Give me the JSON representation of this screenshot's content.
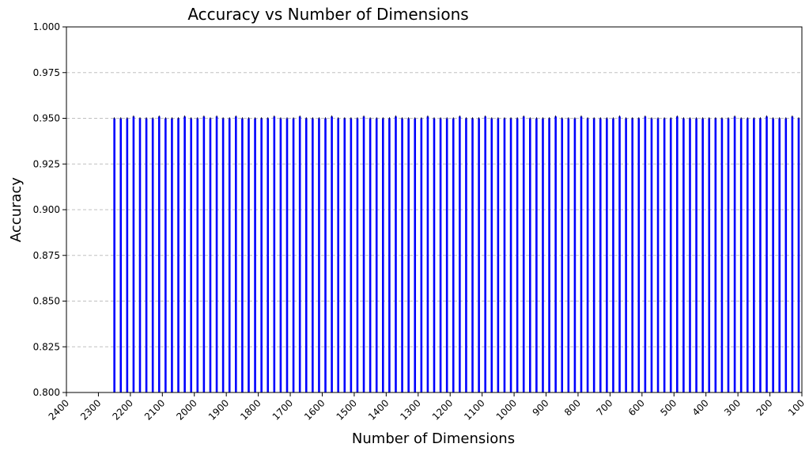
{
  "chart_data": {
    "type": "bar",
    "title": "Accuracy vs Number of Dimensions",
    "xlabel": "Number of Dimensions",
    "ylabel": "Accuracy",
    "x_inverted": true,
    "xlim": [
      2400,
      100
    ],
    "ylim": [
      0.8,
      1.0
    ],
    "yticks": [
      "0.800",
      "0.825",
      "0.850",
      "0.875",
      "0.900",
      "0.925",
      "0.950",
      "0.975",
      "1.000"
    ],
    "xticks": [
      "2400",
      "2300",
      "2200",
      "2100",
      "2000",
      "1900",
      "1800",
      "1700",
      "1600",
      "1500",
      "1400",
      "1300",
      "1200",
      "1100",
      "1000",
      "900",
      "800",
      "700",
      "600",
      "500",
      "400",
      "300",
      "200",
      "100"
    ],
    "grid": {
      "y": true,
      "x": false,
      "style": "dashed"
    },
    "bar_color": "#0000ff",
    "errorbar_color": "#000000",
    "x": [
      2250,
      2230,
      2210,
      2190,
      2170,
      2150,
      2130,
      2110,
      2090,
      2070,
      2050,
      2030,
      2010,
      1990,
      1970,
      1950,
      1930,
      1910,
      1890,
      1870,
      1850,
      1830,
      1810,
      1790,
      1770,
      1750,
      1730,
      1710,
      1690,
      1670,
      1650,
      1630,
      1610,
      1590,
      1570,
      1550,
      1530,
      1510,
      1490,
      1470,
      1450,
      1430,
      1410,
      1390,
      1370,
      1350,
      1330,
      1310,
      1290,
      1270,
      1250,
      1230,
      1210,
      1190,
      1170,
      1150,
      1130,
      1110,
      1090,
      1070,
      1050,
      1030,
      1010,
      990,
      970,
      950,
      930,
      910,
      890,
      870,
      850,
      830,
      810,
      790,
      770,
      750,
      730,
      710,
      690,
      670,
      650,
      630,
      610,
      590,
      570,
      550,
      530,
      510,
      490,
      470,
      450,
      430,
      410,
      390,
      370,
      350,
      330,
      310,
      290,
      270,
      250,
      230,
      210,
      190,
      170,
      150,
      130,
      110
    ],
    "values": [
      0.95,
      0.95,
      0.95,
      0.951,
      0.95,
      0.95,
      0.95,
      0.951,
      0.95,
      0.95,
      0.95,
      0.951,
      0.95,
      0.95,
      0.951,
      0.95,
      0.951,
      0.95,
      0.95,
      0.951,
      0.95,
      0.95,
      0.95,
      0.95,
      0.95,
      0.951,
      0.95,
      0.95,
      0.95,
      0.951,
      0.95,
      0.95,
      0.95,
      0.95,
      0.951,
      0.95,
      0.95,
      0.95,
      0.95,
      0.951,
      0.95,
      0.95,
      0.95,
      0.95,
      0.951,
      0.95,
      0.95,
      0.95,
      0.95,
      0.951,
      0.95,
      0.95,
      0.95,
      0.95,
      0.951,
      0.95,
      0.95,
      0.95,
      0.951,
      0.95,
      0.95,
      0.95,
      0.95,
      0.95,
      0.951,
      0.95,
      0.95,
      0.95,
      0.95,
      0.951,
      0.95,
      0.95,
      0.95,
      0.951,
      0.95,
      0.95,
      0.95,
      0.95,
      0.95,
      0.951,
      0.95,
      0.95,
      0.95,
      0.951,
      0.95,
      0.95,
      0.95,
      0.95,
      0.951,
      0.95,
      0.95,
      0.95,
      0.95,
      0.95,
      0.95,
      0.95,
      0.95,
      0.951,
      0.95,
      0.95,
      0.95,
      0.95,
      0.951,
      0.95,
      0.95,
      0.95,
      0.951,
      0.95
    ]
  }
}
